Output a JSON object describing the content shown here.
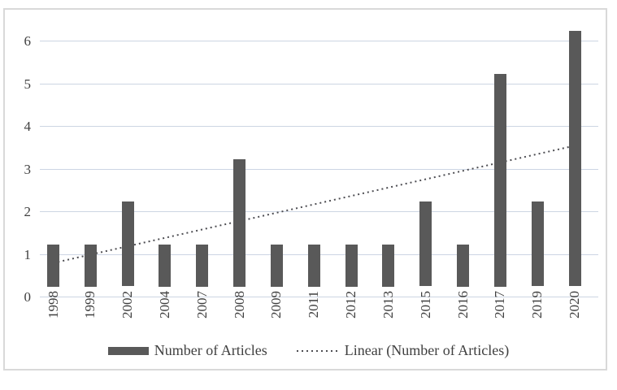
{
  "chart_data": {
    "type": "bar",
    "categories": [
      "1998",
      "1999",
      "2002",
      "2004",
      "2007",
      "2008",
      "2009",
      "2011",
      "2012",
      "2013",
      "2015",
      "2016",
      "2017",
      "2019",
      "2020"
    ],
    "values": [
      1,
      1,
      2,
      1,
      1,
      3,
      1,
      1,
      1,
      1,
      2,
      1,
      5,
      2,
      6
    ],
    "series": [
      {
        "name": "Number of Articles",
        "values": [
          1,
          1,
          2,
          1,
          1,
          3,
          1,
          1,
          1,
          1,
          2,
          1,
          5,
          2,
          6
        ]
      }
    ],
    "trendline": {
      "label": "Linear (Number of Articles)",
      "kind": "linear",
      "start_value": 0.56,
      "end_value": 3.31
    },
    "title": "",
    "xlabel": "",
    "ylabel": "",
    "ylim": [
      0,
      6
    ],
    "yticks": [
      0,
      1,
      2,
      3,
      4,
      5,
      6
    ],
    "grid": true,
    "legend_position": "bottom",
    "x_tick_rotation": 90
  },
  "legend": {
    "bar_label": "Number of Articles",
    "line_label": "Linear (Number of Articles)"
  },
  "colors": {
    "bar": "#595959",
    "trendline": "#4d4d52",
    "gridline": "#ccd5e3",
    "tick_text": "#404040",
    "frame_border": "#d9d9d9",
    "background": "#ffffff"
  }
}
